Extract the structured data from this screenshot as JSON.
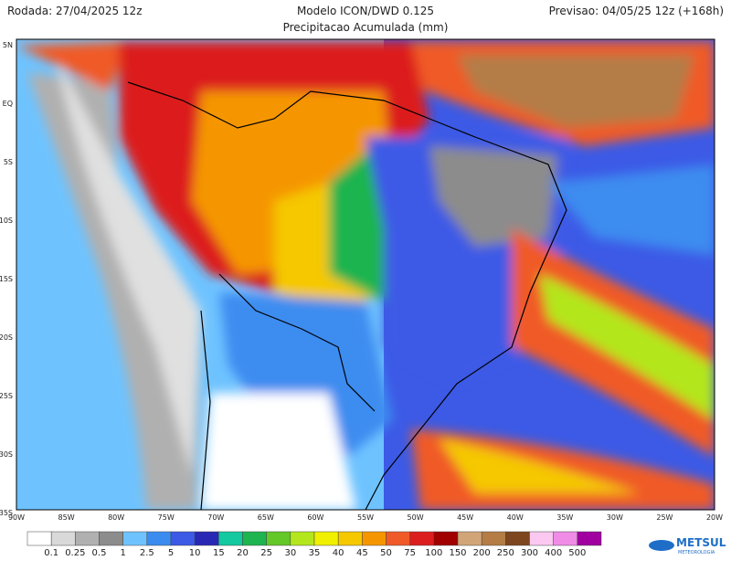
{
  "header": {
    "run": "Rodada: 27/04/2025 12z",
    "model": "Modelo ICON/DWD 0.125",
    "forecast": "Previsao: 04/05/25 12z (+168h)",
    "subtitle": "Precipitacao Acumulada (mm)"
  },
  "map": {
    "lat_labels": [
      "5N",
      "EQ",
      "5S",
      "10S",
      "15S",
      "20S",
      "25S",
      "30S",
      "35S"
    ],
    "lon_labels": [
      "90W",
      "85W",
      "80W",
      "75W",
      "70W",
      "65W",
      "60W",
      "55W",
      "50W",
      "45W",
      "40W",
      "35W",
      "30W",
      "25W",
      "20W"
    ]
  },
  "legend": {
    "labels": [
      "0.1",
      "0.25",
      "0.5",
      "1",
      "2.5",
      "5",
      "10",
      "15",
      "20",
      "25",
      "30",
      "35",
      "40",
      "45",
      "50",
      "75",
      "100",
      "150",
      "200",
      "250",
      "300",
      "400",
      "500"
    ],
    "colors": [
      "#ffffff",
      "#d9d9d9",
      "#b0b0b0",
      "#8c8c8c",
      "#6ec3ff",
      "#3c8cf0",
      "#3c5ae6",
      "#2828b4",
      "#14c8a0",
      "#1eb450",
      "#64c828",
      "#b4e61e",
      "#f0f000",
      "#f5c800",
      "#f59600",
      "#f05a28",
      "#dc1e1e",
      "#a00000",
      "#d2a578",
      "#b47d46",
      "#7d461e",
      "#fac8f0",
      "#f08ce6",
      "#a000a0"
    ]
  },
  "logo": {
    "name": "METSUL",
    "tagline": "METEOROLOGIA"
  }
}
